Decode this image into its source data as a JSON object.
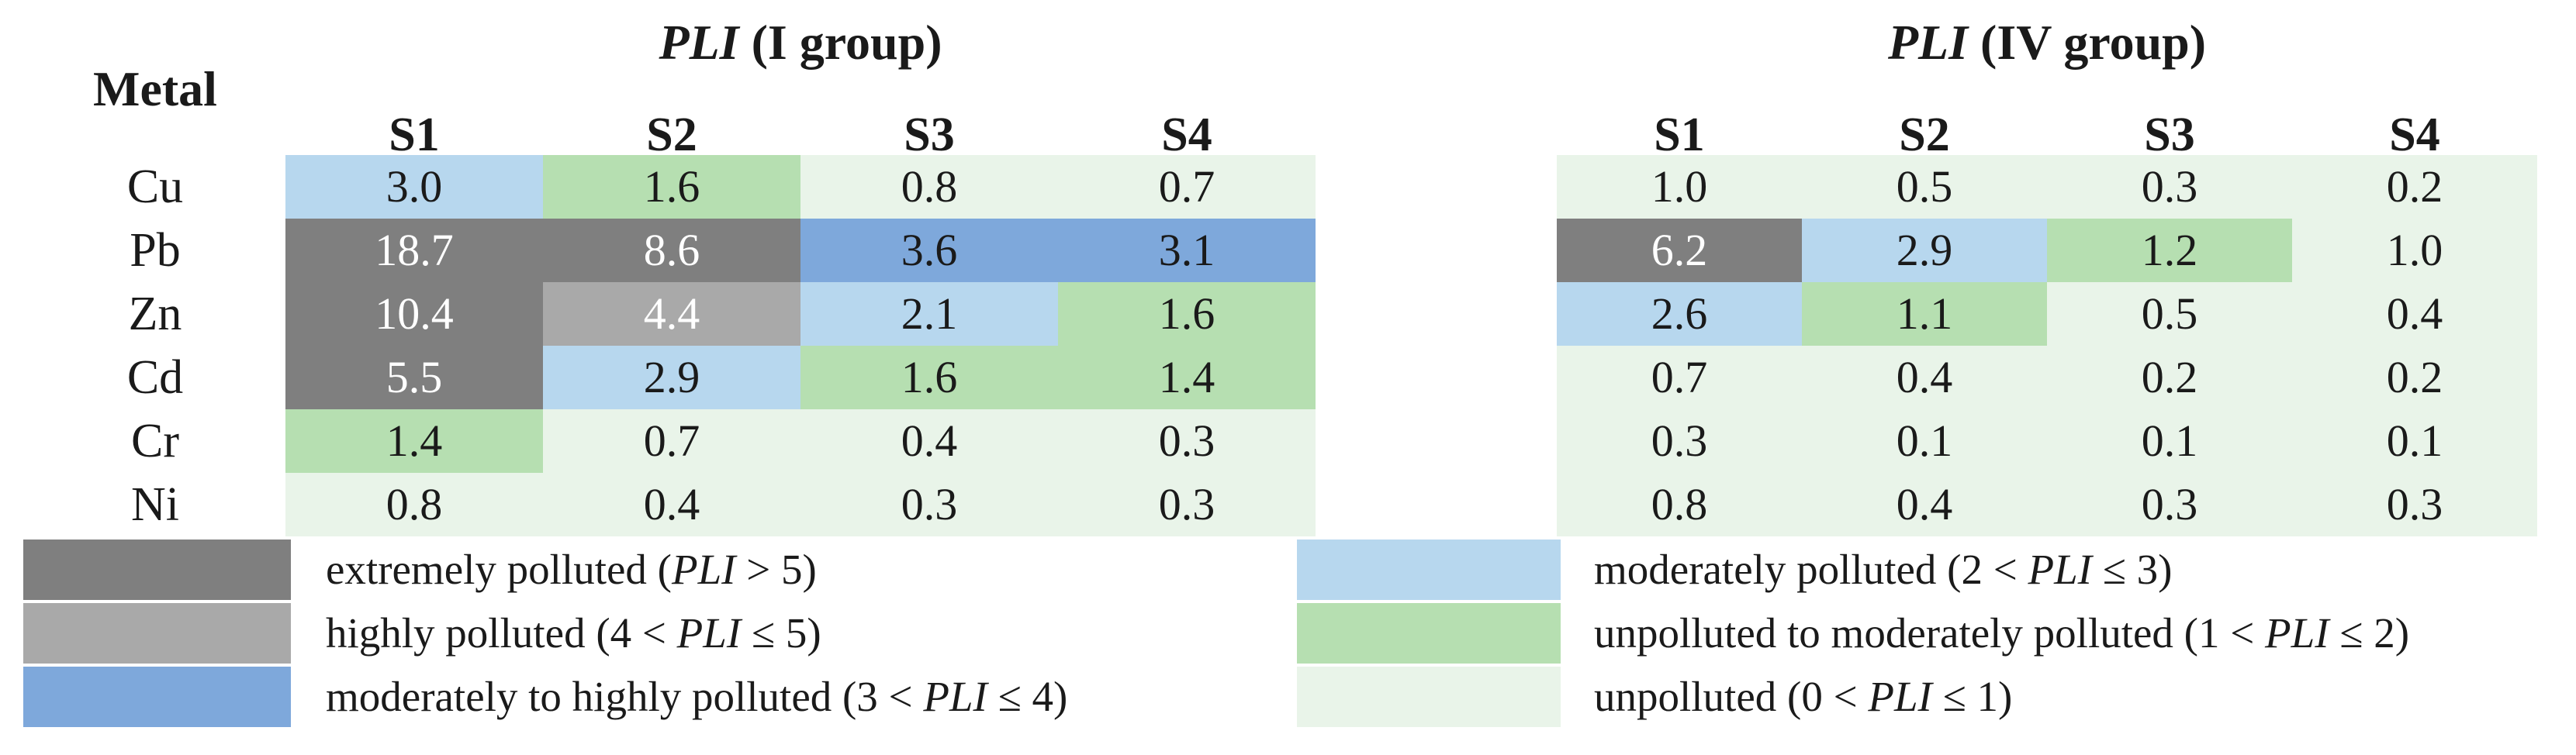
{
  "header": {
    "metal_label": "Metal"
  },
  "colors": {
    "extreme": "#7f7f7f",
    "high": "#a9a9a9",
    "mod_high": "#7ea8db",
    "moderate": "#b7d7ee",
    "unpoll_mod": "#b6dfb1",
    "unpolluted": "#e9f4e9",
    "text_dark": "#1a1a1a",
    "text_light": "#ffffff"
  },
  "chart_data": {
    "type": "heatmap",
    "stations": [
      "S1",
      "S2",
      "S3",
      "S4"
    ],
    "metals": [
      "Cu",
      "Pb",
      "Zn",
      "Cd",
      "Cr",
      "Ni"
    ],
    "tables": [
      {
        "group": "I",
        "title": {
          "pli": "PLI",
          "rest": " (I group)"
        },
        "rows": [
          {
            "metal": "Cu",
            "cells": [
              {
                "value": "3.0",
                "level": "moderate"
              },
              {
                "value": "1.6",
                "level": "unpoll_mod"
              },
              {
                "value": "0.8",
                "level": "unpolluted"
              },
              {
                "value": "0.7",
                "level": "unpolluted"
              }
            ]
          },
          {
            "metal": "Pb",
            "cells": [
              {
                "value": "18.7",
                "level": "extreme"
              },
              {
                "value": "8.6",
                "level": "extreme"
              },
              {
                "value": "3.6",
                "level": "mod_high"
              },
              {
                "value": "3.1",
                "level": "mod_high"
              }
            ]
          },
          {
            "metal": "Zn",
            "cells": [
              {
                "value": "10.4",
                "level": "extreme"
              },
              {
                "value": "4.4",
                "level": "high"
              },
              {
                "value": "2.1",
                "level": "moderate"
              },
              {
                "value": "1.6",
                "level": "unpoll_mod"
              }
            ]
          },
          {
            "metal": "Cd",
            "cells": [
              {
                "value": "5.5",
                "level": "extreme"
              },
              {
                "value": "2.9",
                "level": "moderate"
              },
              {
                "value": "1.6",
                "level": "unpoll_mod"
              },
              {
                "value": "1.4",
                "level": "unpoll_mod"
              }
            ]
          },
          {
            "metal": "Cr",
            "cells": [
              {
                "value": "1.4",
                "level": "unpoll_mod"
              },
              {
                "value": "0.7",
                "level": "unpolluted"
              },
              {
                "value": "0.4",
                "level": "unpolluted"
              },
              {
                "value": "0.3",
                "level": "unpolluted"
              }
            ]
          },
          {
            "metal": "Ni",
            "cells": [
              {
                "value": "0.8",
                "level": "unpolluted"
              },
              {
                "value": "0.4",
                "level": "unpolluted"
              },
              {
                "value": "0.3",
                "level": "unpolluted"
              },
              {
                "value": "0.3",
                "level": "unpolluted"
              }
            ]
          }
        ]
      },
      {
        "group": "IV",
        "title": {
          "pli": "PLI",
          "rest": " (IV group)"
        },
        "rows": [
          {
            "metal": "Cu",
            "cells": [
              {
                "value": "1.0",
                "level": "unpolluted"
              },
              {
                "value": "0.5",
                "level": "unpolluted"
              },
              {
                "value": "0.3",
                "level": "unpolluted"
              },
              {
                "value": "0.2",
                "level": "unpolluted"
              }
            ]
          },
          {
            "metal": "Pb",
            "cells": [
              {
                "value": "6.2",
                "level": "extreme"
              },
              {
                "value": "2.9",
                "level": "moderate"
              },
              {
                "value": "1.2",
                "level": "unpoll_mod"
              },
              {
                "value": "1.0",
                "level": "unpolluted"
              }
            ]
          },
          {
            "metal": "Zn",
            "cells": [
              {
                "value": "2.6",
                "level": "moderate"
              },
              {
                "value": "1.1",
                "level": "unpoll_mod"
              },
              {
                "value": "0.5",
                "level": "unpolluted"
              },
              {
                "value": "0.4",
                "level": "unpolluted"
              }
            ]
          },
          {
            "metal": "Cd",
            "cells": [
              {
                "value": "0.7",
                "level": "unpolluted"
              },
              {
                "value": "0.4",
                "level": "unpolluted"
              },
              {
                "value": "0.2",
                "level": "unpolluted"
              },
              {
                "value": "0.2",
                "level": "unpolluted"
              }
            ]
          },
          {
            "metal": "Cr",
            "cells": [
              {
                "value": "0.3",
                "level": "unpolluted"
              },
              {
                "value": "0.1",
                "level": "unpolluted"
              },
              {
                "value": "0.1",
                "level": "unpolluted"
              },
              {
                "value": "0.1",
                "level": "unpolluted"
              }
            ]
          },
          {
            "metal": "Ni",
            "cells": [
              {
                "value": "0.8",
                "level": "unpolluted"
              },
              {
                "value": "0.4",
                "level": "unpolluted"
              },
              {
                "value": "0.3",
                "level": "unpolluted"
              },
              {
                "value": "0.3",
                "level": "unpolluted"
              }
            ]
          }
        ]
      }
    ]
  },
  "legend": {
    "left": [
      {
        "level": "extreme",
        "pre": "extremely polluted (",
        "pli": "PLI",
        "post": " > 5)"
      },
      {
        "level": "high",
        "pre": "highly polluted (4 < ",
        "pli": "PLI",
        "post": " ≤ 5)"
      },
      {
        "level": "mod_high",
        "pre": "moderately to highly polluted (3 < ",
        "pli": "PLI",
        "post": " ≤ 4)"
      }
    ],
    "right": [
      {
        "level": "moderate",
        "pre": "moderately polluted (2 < ",
        "pli": "PLI",
        "post": " ≤ 3)"
      },
      {
        "level": "unpoll_mod",
        "pre": "unpolluted to moderately polluted (1 < ",
        "pli": "PLI",
        "post": " ≤ 2)"
      },
      {
        "level": "unpolluted",
        "pre": "unpolluted (0 < ",
        "pli": "PLI",
        "post": " ≤ 1)"
      }
    ]
  }
}
